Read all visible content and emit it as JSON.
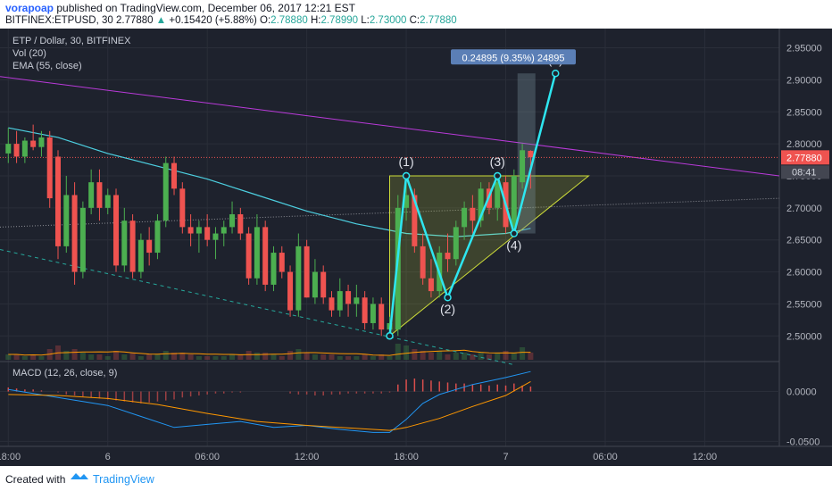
{
  "header": {
    "author": "vorapoap",
    "published": "published on TradingView.com, December 06, 2017 12:21 EST",
    "symbol": "BITFINEX:ETPUSD, 30",
    "last": "2.77880",
    "change": "+0.15420 (+5.88%)",
    "o_label": "O:",
    "o": "2.78880",
    "h_label": "H:",
    "h": "2.78990",
    "l_label": "L:",
    "l": "2.73000",
    "c_label": "C:",
    "c": "2.77880"
  },
  "legend": {
    "title": "ETP / Dollar, 30, BITFINEX",
    "vol": "Vol (20)",
    "ema": "EMA (55, close)",
    "macd": "MACD (12, 26, close, 9)"
  },
  "footer": {
    "created_with": "Created with",
    "brand": "TradingView",
    "logo_icon": "tradingview-logo-icon"
  },
  "colors": {
    "bg": "#1e222d",
    "up": "#4caf50",
    "down": "#ef5350",
    "ema": "#4dd0e1",
    "trend": "#b93ad9",
    "pattern": "#2ee6f0"
  },
  "chart_data": {
    "type": "candlestick",
    "ylim": [
      2.46,
      2.98
    ],
    "y_ticks": [
      "2.95000",
      "2.90000",
      "2.85000",
      "2.80000",
      "2.75000",
      "2.70000",
      "2.65000",
      "2.60000",
      "2.55000",
      "2.50000"
    ],
    "y_tick_values": [
      2.95,
      2.9,
      2.85,
      2.8,
      2.75,
      2.7,
      2.65,
      2.6,
      2.55,
      2.5
    ],
    "x_tick_labels": [
      "18:00",
      "6",
      "06:00",
      "12:00",
      "18:00",
      "7",
      "06:00",
      "12:00"
    ],
    "x_tick_times_h": [
      0,
      6,
      12,
      18,
      24,
      30,
      36,
      42
    ],
    "time_range_h": [
      -0.5,
      46.5
    ],
    "last_price_label": "2.77880",
    "countdown_label": "08:41",
    "measure_label": "0.24895 (9.35%) 24895",
    "pattern_labels": [
      "(1)",
      "(2)",
      "(3)",
      "(4)",
      "(5)"
    ],
    "candles": [
      {
        "t": 0.0,
        "o": 2.785,
        "h": 2.825,
        "l": 2.77,
        "c": 2.8
      },
      {
        "t": 0.5,
        "o": 2.8,
        "h": 2.82,
        "l": 2.77,
        "c": 2.78
      },
      {
        "t": 1.0,
        "o": 2.78,
        "h": 2.81,
        "l": 2.77,
        "c": 2.805
      },
      {
        "t": 1.5,
        "o": 2.805,
        "h": 2.83,
        "l": 2.79,
        "c": 2.795
      },
      {
        "t": 2.0,
        "o": 2.795,
        "h": 2.82,
        "l": 2.78,
        "c": 2.81
      },
      {
        "t": 2.5,
        "o": 2.81,
        "h": 2.82,
        "l": 2.7,
        "c": 2.715
      },
      {
        "t": 3.0,
        "o": 2.78,
        "h": 2.79,
        "l": 2.62,
        "c": 2.64
      },
      {
        "t": 3.5,
        "o": 2.64,
        "h": 2.75,
        "l": 2.63,
        "c": 2.72
      },
      {
        "t": 4.0,
        "o": 2.72,
        "h": 2.74,
        "l": 2.58,
        "c": 2.6
      },
      {
        "t": 4.5,
        "o": 2.6,
        "h": 2.71,
        "l": 2.59,
        "c": 2.7
      },
      {
        "t": 5.0,
        "o": 2.7,
        "h": 2.76,
        "l": 2.69,
        "c": 2.74
      },
      {
        "t": 5.5,
        "o": 2.74,
        "h": 2.76,
        "l": 2.68,
        "c": 2.7
      },
      {
        "t": 6.0,
        "o": 2.7,
        "h": 2.73,
        "l": 2.69,
        "c": 2.72
      },
      {
        "t": 6.5,
        "o": 2.72,
        "h": 2.73,
        "l": 2.6,
        "c": 2.61
      },
      {
        "t": 7.0,
        "o": 2.61,
        "h": 2.7,
        "l": 2.6,
        "c": 2.68
      },
      {
        "t": 7.5,
        "o": 2.68,
        "h": 2.69,
        "l": 2.59,
        "c": 2.6
      },
      {
        "t": 8.0,
        "o": 2.6,
        "h": 2.66,
        "l": 2.59,
        "c": 2.65
      },
      {
        "t": 8.5,
        "o": 2.65,
        "h": 2.67,
        "l": 2.61,
        "c": 2.63
      },
      {
        "t": 9.0,
        "o": 2.63,
        "h": 2.69,
        "l": 2.62,
        "c": 2.68
      },
      {
        "t": 9.5,
        "o": 2.68,
        "h": 2.78,
        "l": 2.67,
        "c": 2.77
      },
      {
        "t": 10.0,
        "o": 2.77,
        "h": 2.78,
        "l": 2.72,
        "c": 2.73
      },
      {
        "t": 10.5,
        "o": 2.73,
        "h": 2.74,
        "l": 2.66,
        "c": 2.67
      },
      {
        "t": 11.0,
        "o": 2.67,
        "h": 2.69,
        "l": 2.64,
        "c": 2.66
      },
      {
        "t": 11.5,
        "o": 2.66,
        "h": 2.68,
        "l": 2.63,
        "c": 2.67
      },
      {
        "t": 12.0,
        "o": 2.67,
        "h": 2.69,
        "l": 2.64,
        "c": 2.65
      },
      {
        "t": 12.5,
        "o": 2.65,
        "h": 2.67,
        "l": 2.62,
        "c": 2.66
      },
      {
        "t": 13.0,
        "o": 2.66,
        "h": 2.68,
        "l": 2.64,
        "c": 2.67
      },
      {
        "t": 13.5,
        "o": 2.67,
        "h": 2.71,
        "l": 2.66,
        "c": 2.69
      },
      {
        "t": 14.0,
        "o": 2.69,
        "h": 2.7,
        "l": 2.65,
        "c": 2.66
      },
      {
        "t": 14.5,
        "o": 2.66,
        "h": 2.67,
        "l": 2.58,
        "c": 2.59
      },
      {
        "t": 15.0,
        "o": 2.59,
        "h": 2.69,
        "l": 2.58,
        "c": 2.67
      },
      {
        "t": 15.5,
        "o": 2.67,
        "h": 2.68,
        "l": 2.57,
        "c": 2.58
      },
      {
        "t": 16.0,
        "o": 2.58,
        "h": 2.64,
        "l": 2.57,
        "c": 2.63
      },
      {
        "t": 16.5,
        "o": 2.63,
        "h": 2.64,
        "l": 2.59,
        "c": 2.6
      },
      {
        "t": 17.0,
        "o": 2.6,
        "h": 2.61,
        "l": 2.53,
        "c": 2.54
      },
      {
        "t": 17.5,
        "o": 2.54,
        "h": 2.66,
        "l": 2.53,
        "c": 2.64
      },
      {
        "t": 18.0,
        "o": 2.64,
        "h": 2.65,
        "l": 2.56,
        "c": 2.56
      },
      {
        "t": 18.5,
        "o": 2.56,
        "h": 2.62,
        "l": 2.55,
        "c": 2.6
      },
      {
        "t": 19.0,
        "o": 2.6,
        "h": 2.61,
        "l": 2.55,
        "c": 2.56
      },
      {
        "t": 19.5,
        "o": 2.56,
        "h": 2.57,
        "l": 2.53,
        "c": 2.54
      },
      {
        "t": 20.0,
        "o": 2.54,
        "h": 2.59,
        "l": 2.53,
        "c": 2.57
      },
      {
        "t": 20.5,
        "o": 2.57,
        "h": 2.58,
        "l": 2.53,
        "c": 2.55
      },
      {
        "t": 21.0,
        "o": 2.55,
        "h": 2.58,
        "l": 2.53,
        "c": 2.56
      },
      {
        "t": 21.5,
        "o": 2.56,
        "h": 2.57,
        "l": 2.51,
        "c": 2.52
      },
      {
        "t": 22.0,
        "o": 2.52,
        "h": 2.56,
        "l": 2.51,
        "c": 2.55
      },
      {
        "t": 22.5,
        "o": 2.55,
        "h": 2.56,
        "l": 2.5,
        "c": 2.51
      },
      {
        "t": 23.0,
        "o": 2.51,
        "h": 2.53,
        "l": 2.5,
        "c": 2.52
      },
      {
        "t": 23.5,
        "o": 2.51,
        "h": 2.72,
        "l": 2.5,
        "c": 2.7
      },
      {
        "t": 24.0,
        "o": 2.7,
        "h": 2.75,
        "l": 2.68,
        "c": 2.72
      },
      {
        "t": 24.5,
        "o": 2.72,
        "h": 2.73,
        "l": 2.63,
        "c": 2.64
      },
      {
        "t": 25.0,
        "o": 2.64,
        "h": 2.66,
        "l": 2.58,
        "c": 2.59
      },
      {
        "t": 25.5,
        "o": 2.59,
        "h": 2.62,
        "l": 2.56,
        "c": 2.57
      },
      {
        "t": 26.0,
        "o": 2.57,
        "h": 2.64,
        "l": 2.56,
        "c": 2.63
      },
      {
        "t": 26.5,
        "o": 2.63,
        "h": 2.66,
        "l": 2.6,
        "c": 2.62
      },
      {
        "t": 27.0,
        "o": 2.62,
        "h": 2.68,
        "l": 2.61,
        "c": 2.67
      },
      {
        "t": 27.5,
        "o": 2.67,
        "h": 2.71,
        "l": 2.65,
        "c": 2.7
      },
      {
        "t": 28.0,
        "o": 2.7,
        "h": 2.72,
        "l": 2.66,
        "c": 2.68
      },
      {
        "t": 28.5,
        "o": 2.68,
        "h": 2.74,
        "l": 2.67,
        "c": 2.73
      },
      {
        "t": 29.0,
        "o": 2.73,
        "h": 2.74,
        "l": 2.69,
        "c": 2.7
      },
      {
        "t": 29.5,
        "o": 2.7,
        "h": 2.75,
        "l": 2.68,
        "c": 2.74
      },
      {
        "t": 30.0,
        "o": 2.74,
        "h": 2.75,
        "l": 2.66,
        "c": 2.67
      },
      {
        "t": 30.5,
        "o": 2.67,
        "h": 2.76,
        "l": 2.66,
        "c": 2.75
      },
      {
        "t": 31.0,
        "o": 2.74,
        "h": 2.8,
        "l": 2.73,
        "c": 2.79
      },
      {
        "t": 31.5,
        "o": 2.789,
        "h": 2.79,
        "l": 2.73,
        "c": 2.779
      }
    ],
    "ema55": [
      [
        0,
        2.825
      ],
      [
        3,
        2.81
      ],
      [
        6,
        2.785
      ],
      [
        9,
        2.765
      ],
      [
        12,
        2.745
      ],
      [
        15,
        2.72
      ],
      [
        18,
        2.695
      ],
      [
        21,
        2.675
      ],
      [
        24,
        2.66
      ],
      [
        27,
        2.655
      ],
      [
        30,
        2.66
      ],
      [
        31.5,
        2.668
      ]
    ],
    "pattern_points": [
      [
        23,
        2.5
      ],
      [
        24,
        2.75
      ],
      [
        26.5,
        2.56
      ],
      [
        29.5,
        2.75
      ],
      [
        30.5,
        2.66
      ],
      [
        33,
        2.91
      ]
    ],
    "triangle": [
      [
        23,
        2.5
      ],
      [
        23,
        2.75
      ],
      [
        35,
        2.75
      ]
    ],
    "trendline_top": [
      [
        -0.5,
        2.905
      ],
      [
        46.5,
        2.75
      ]
    ],
    "trendline_support": [
      [
        -0.5,
        2.67
      ],
      [
        46.5,
        2.715
      ]
    ],
    "trendline_lower": [
      [
        -0.5,
        2.635
      ],
      [
        30.5,
        2.455
      ]
    ],
    "measure_x": 31.25,
    "measure_y": [
      2.66,
      2.91
    ],
    "volume": [
      3,
      3,
      2,
      3,
      2,
      6,
      8,
      5,
      6,
      4,
      3,
      3,
      2,
      5,
      3,
      4,
      2,
      3,
      3,
      5,
      4,
      4,
      3,
      2,
      2,
      2,
      2,
      3,
      3,
      5,
      4,
      4,
      3,
      2,
      5,
      6,
      4,
      3,
      3,
      3,
      2,
      2,
      2,
      3,
      2,
      3,
      2,
      9,
      8,
      6,
      5,
      4,
      5,
      3,
      4,
      4,
      3,
      4,
      3,
      4,
      5,
      4,
      7,
      4
    ],
    "macd_ylim": [
      -0.055,
      0.03
    ],
    "macd_ticks": [
      0.0,
      -0.05
    ],
    "macd_tick_labels": [
      "0.0000",
      "-0.0500"
    ],
    "macd_line": [
      [
        0,
        0.002
      ],
      [
        3,
        -0.006
      ],
      [
        6,
        -0.014
      ],
      [
        8,
        -0.025
      ],
      [
        10,
        -0.036
      ],
      [
        12,
        -0.033
      ],
      [
        14,
        -0.03
      ],
      [
        16,
        -0.036
      ],
      [
        18,
        -0.034
      ],
      [
        20,
        -0.038
      ],
      [
        22,
        -0.041
      ],
      [
        23,
        -0.041
      ],
      [
        24,
        -0.028
      ],
      [
        25,
        -0.012
      ],
      [
        26,
        -0.003
      ],
      [
        28,
        0.007
      ],
      [
        30,
        0.014
      ],
      [
        31.5,
        0.02
      ]
    ],
    "signal_line": [
      [
        0,
        -0.003
      ],
      [
        3,
        -0.004
      ],
      [
        6,
        -0.007
      ],
      [
        9,
        -0.013
      ],
      [
        12,
        -0.022
      ],
      [
        15,
        -0.03
      ],
      [
        18,
        -0.034
      ],
      [
        21,
        -0.037
      ],
      [
        23,
        -0.039
      ],
      [
        24,
        -0.036
      ],
      [
        26,
        -0.027
      ],
      [
        28,
        -0.015
      ],
      [
        30,
        -0.004
      ],
      [
        31.5,
        0.01
      ]
    ],
    "histogram": [
      0.004,
      0.003,
      0.002,
      0.002,
      0.001,
      0,
      -0.001,
      -0.003,
      -0.004,
      -0.005,
      -0.006,
      -0.007,
      -0.008,
      -0.009,
      -0.01,
      -0.011,
      -0.012,
      -0.011,
      -0.01,
      -0.009,
      -0.008,
      -0.006,
      -0.005,
      -0.004,
      -0.003,
      -0.002,
      -0.002,
      -0.001,
      -0.001,
      0,
      0,
      0,
      0,
      0,
      -0.002,
      -0.003,
      -0.003,
      -0.004,
      -0.004,
      -0.003,
      -0.003,
      -0.002,
      -0.002,
      -0.002,
      -0.002,
      -0.002,
      -0.001,
      0.007,
      0.012,
      0.013,
      0.012,
      0.011,
      0.01,
      0.009,
      0.008,
      0.008,
      0.007,
      0.007,
      0.006,
      0.007,
      0.006,
      0.008,
      0.006,
      0.005
    ]
  }
}
